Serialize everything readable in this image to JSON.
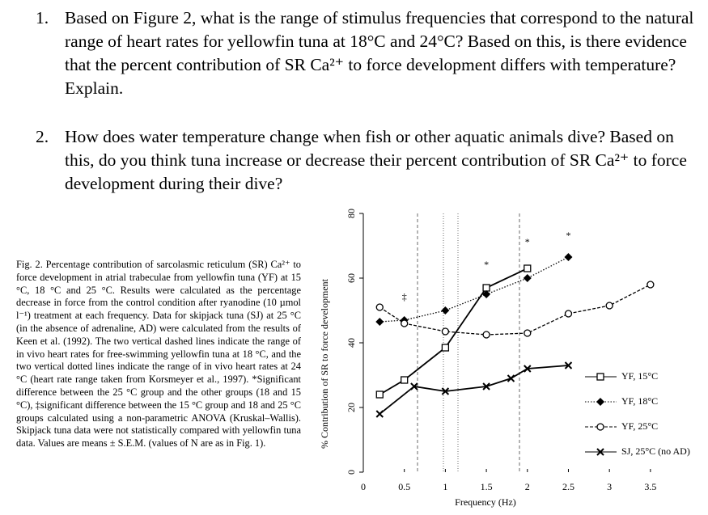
{
  "questions": [
    {
      "number": "1.",
      "text": "Based on Figure 2, what is the range of stimulus frequencies that correspond to the natural range of heart rates for yellowfin tuna at 18°C and 24°C? Based on this, is there evidence that the percent contribution of SR Ca²⁺ to force development differs with temperature? Explain."
    },
    {
      "number": "2.",
      "text": "How does water temperature change when fish or other aquatic animals dive? Based on this, do you think tuna increase or decrease their percent contribution of SR Ca²⁺ to force development during their dive?"
    }
  ],
  "caption": "Fig. 2. Percentage contribution of sarcolasmic reticulum (SR) Ca²⁺ to force development in atrial trabeculae from yellowfin tuna (YF) at 15 °C, 18 °C and 25 °C. Results were calculated as the percentage decrease in force from the control condition after ryanodine (10 µmol l⁻¹) treatment at each frequency. Data for skipjack tuna (SJ) at 25 °C (in the absence of adrenaline, AD) were calculated from the results of Keen et al. (1992). The two vertical dashed lines indicate the range of in vivo heart rates for free-swimming yellowfin tuna at 18 °C, and the two vertical dotted lines indicate the range of in vivo heart rates at 24 °C (heart rate range taken from Korsmeyer et al., 1997). *Significant difference between the 25 °C group and the other groups (18 and 15 °C), ‡significant difference between the 15 °C group and 18 and 25 °C groups calculated using a non-parametric ANOVA (Kruskal–Wallis). Skipjack tuna data were not statistically compared with yellowfin tuna data. Values are means ± S.E.M. (values of N are as in Fig. 1).",
  "chart_data": {
    "type": "line",
    "x_label": "Frequency (Hz)",
    "y_label": "% Contribution of SR to force development",
    "xlim": [
      0,
      3.6
    ],
    "ylim": [
      0,
      80
    ],
    "xticks": [
      0,
      0.5,
      1,
      1.5,
      2,
      2.5,
      3,
      3.5
    ],
    "yticks": [
      0,
      20,
      40,
      60,
      80
    ],
    "series": [
      {
        "name": "YF, 15°C",
        "color": "#000000",
        "marker": "square",
        "line_style": "solid",
        "x": [
          0.2,
          0.5,
          1,
          1.5,
          2
        ],
        "values": [
          24,
          28.5,
          38.5,
          57,
          63
        ]
      },
      {
        "name": "YF, 18°C",
        "color": "#000000",
        "marker": "diamond",
        "line_style": "dotted",
        "x": [
          0.2,
          0.5,
          1,
          1.5,
          2,
          2.5
        ],
        "values": [
          46.5,
          47,
          50,
          55,
          60,
          66.5
        ]
      },
      {
        "name": "YF, 25°C",
        "color": "#000000",
        "marker": "circle",
        "line_style": "dashed",
        "x": [
          0.2,
          0.5,
          1,
          1.5,
          2,
          2.5,
          3,
          3.5
        ],
        "values": [
          51,
          46,
          43.5,
          42.5,
          43,
          49,
          51.5,
          58
        ]
      },
      {
        "name": "SJ, 25°C (no AD)",
        "color": "#000000",
        "marker": "cross",
        "line_style": "solid",
        "x": [
          0.2,
          0.62,
          1,
          1.5,
          1.8,
          2,
          2.5
        ],
        "values": [
          18,
          26.5,
          25,
          26.5,
          29,
          32,
          33
        ]
      }
    ],
    "annotations": [
      {
        "text": "‡",
        "x": 0.5,
        "y": 54
      },
      {
        "text": "*",
        "x": 1.5,
        "y": 64
      },
      {
        "text": "*",
        "x": 2,
        "y": 71
      },
      {
        "text": "*",
        "x": 2.5,
        "y": 73
      }
    ]
  }
}
